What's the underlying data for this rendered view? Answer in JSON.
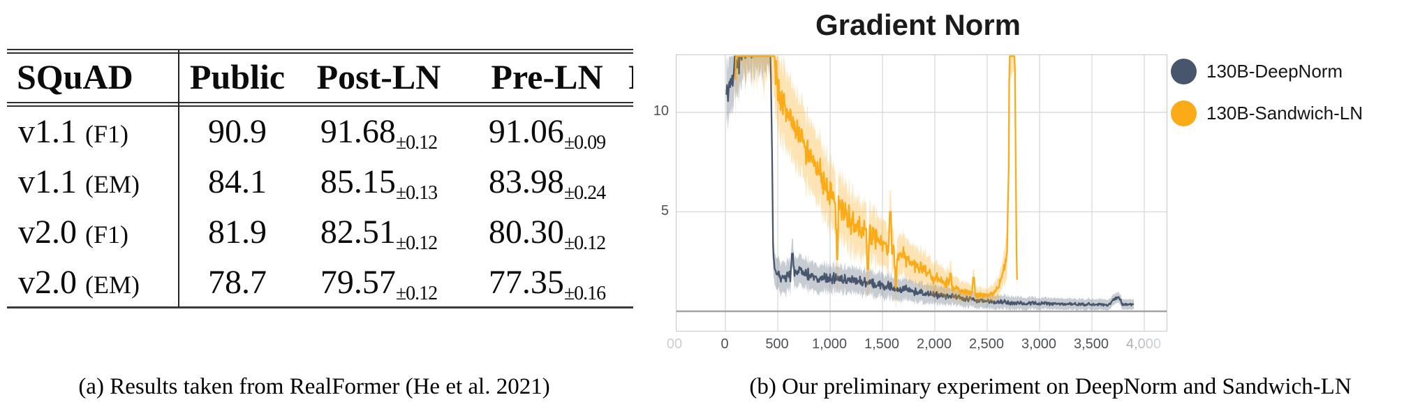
{
  "panel_a": {
    "table": {
      "header": [
        "SQuAD",
        "Public",
        "Post-LN",
        "Pre-LN"
      ],
      "clipped_next_column_glyph": "R",
      "rows": [
        {
          "version": "v1.1",
          "metric": "(F1)",
          "public": "90.9",
          "post_ln": "91.68",
          "post_ln_std": "±0.12",
          "pre_ln": "91.06",
          "pre_ln_std": "±0.09"
        },
        {
          "version": "v1.1",
          "metric": "(EM)",
          "public": "84.1",
          "post_ln": "85.15",
          "post_ln_std": "±0.13",
          "pre_ln": "83.98",
          "pre_ln_std": "±0.24"
        },
        {
          "version": "v2.0",
          "metric": "(F1)",
          "public": "81.9",
          "post_ln": "82.51",
          "post_ln_std": "±0.12",
          "pre_ln": "80.30",
          "pre_ln_std": "±0.12"
        },
        {
          "version": "v2.0",
          "metric": "(EM)",
          "public": "78.7",
          "post_ln": "79.57",
          "post_ln_std": "±0.12",
          "pre_ln": "77.35",
          "pre_ln_std": "±0.16"
        }
      ]
    },
    "caption": "(a) Results taken from RealFormer (He et al. 2021)"
  },
  "panel_b": {
    "title": "Gradient Norm",
    "caption": "(b) Our preliminary experiment on DeepNorm and Sandwich-LN"
  },
  "chart_data": {
    "type": "line",
    "title": "Gradient Norm",
    "xlabel": "",
    "ylabel": "",
    "grid": true,
    "legend_position": "right",
    "xlim": [
      -470,
      4210
    ],
    "ylim": [
      -1,
      12.9
    ],
    "x_ticks": [
      {
        "step": -480,
        "label": "00",
        "faded": true
      },
      {
        "step": 0,
        "label": "0"
      },
      {
        "step": 500,
        "label": "500"
      },
      {
        "step": 1000,
        "label": "1,000"
      },
      {
        "step": 1500,
        "label": "1,500"
      },
      {
        "step": 2000,
        "label": "2,000"
      },
      {
        "step": 2500,
        "label": "2,500"
      },
      {
        "step": 3000,
        "label": "3,000"
      },
      {
        "step": 3500,
        "label": "3,500"
      },
      {
        "step": 4000,
        "label": "4,000",
        "fadetail": true
      }
    ],
    "y_ticks": [
      {
        "value": 5,
        "label": "5"
      },
      {
        "value": 10,
        "label": "10"
      }
    ],
    "colors": {
      "grid": "#dcdcdc",
      "zero_line": "#a3a3a3",
      "plot_border": "#c7c7c7"
    },
    "series": [
      {
        "name": "130B-DeepNorm",
        "color": "#47566c",
        "band_color": "rgba(71,86,108,0.30)",
        "seed": 3,
        "trend": [
          [
            10,
            10.8
          ],
          [
            40,
            11.6
          ],
          [
            80,
            12.2
          ],
          [
            130,
            12.6
          ],
          [
            200,
            13.4
          ],
          [
            300,
            13.6
          ],
          [
            430,
            13.6
          ],
          [
            445,
            8
          ],
          [
            455,
            3.2
          ],
          [
            470,
            2.1
          ],
          [
            520,
            1.75
          ],
          [
            600,
            1.8
          ],
          [
            700,
            2.0
          ],
          [
            800,
            1.85
          ],
          [
            900,
            1.6
          ],
          [
            1000,
            1.7
          ],
          [
            1100,
            1.6
          ],
          [
            1300,
            1.5
          ],
          [
            1500,
            1.3
          ],
          [
            1700,
            1.1
          ],
          [
            1900,
            0.9
          ],
          [
            2100,
            0.78
          ],
          [
            2300,
            0.62
          ],
          [
            2500,
            0.5
          ],
          [
            2700,
            0.44
          ],
          [
            2900,
            0.4
          ],
          [
            3100,
            0.38
          ],
          [
            3300,
            0.36
          ],
          [
            3500,
            0.34
          ],
          [
            3650,
            0.33
          ],
          [
            3755,
            0.75
          ],
          [
            3790,
            0.35
          ],
          [
            3900,
            0.32
          ]
        ],
        "noise_amp": [
          [
            10,
            0.8
          ],
          [
            430,
            0.9
          ],
          [
            470,
            0.4
          ],
          [
            1000,
            0.32
          ],
          [
            1500,
            0.28
          ],
          [
            2000,
            0.2
          ],
          [
            2500,
            0.14
          ],
          [
            3000,
            0.1
          ],
          [
            3900,
            0.08
          ]
        ],
        "spikes": [
          [
            640,
            2.9
          ]
        ]
      },
      {
        "name": "130B-Sandwich-LN",
        "color": "#fbab17",
        "band_color": "rgba(251,171,23,0.32)",
        "seed": 11,
        "trend": [
          [
            95,
            12
          ],
          [
            120,
            14.5
          ],
          [
            430,
            14.5
          ],
          [
            500,
            10.8
          ],
          [
            600,
            9.8
          ],
          [
            700,
            8.9
          ],
          [
            800,
            7.9
          ],
          [
            900,
            6.9
          ],
          [
            1000,
            5.9
          ],
          [
            1100,
            5.2
          ],
          [
            1200,
            4.6
          ],
          [
            1300,
            4.1
          ],
          [
            1400,
            3.8
          ],
          [
            1500,
            3.5
          ],
          [
            1600,
            3.1
          ],
          [
            1700,
            2.75
          ],
          [
            1800,
            2.4
          ],
          [
            1900,
            2.0
          ],
          [
            2000,
            1.65
          ],
          [
            2100,
            1.45
          ],
          [
            2200,
            1.15
          ],
          [
            2300,
            0.95
          ],
          [
            2400,
            0.82
          ],
          [
            2500,
            0.8
          ],
          [
            2570,
            0.95
          ],
          [
            2620,
            1.4
          ],
          [
            2660,
            2.1
          ],
          [
            2690,
            3.4
          ],
          [
            2705,
            7
          ],
          [
            2712,
            13.6
          ],
          [
            2762,
            13.6
          ],
          [
            2770,
            9
          ],
          [
            2778,
            4
          ],
          [
            2786,
            1.3
          ]
        ],
        "noise_amp": [
          [
            95,
            1.4
          ],
          [
            430,
            1.5
          ],
          [
            500,
            1.1
          ],
          [
            800,
            0.95
          ],
          [
            1200,
            0.8
          ],
          [
            1600,
            0.55
          ],
          [
            2000,
            0.4
          ],
          [
            2300,
            0.2
          ],
          [
            2500,
            0.12
          ],
          [
            2650,
            0.3
          ],
          [
            2700,
            0.8
          ],
          [
            2760,
            1.0
          ],
          [
            2786,
            0.3
          ]
        ],
        "spikes": [
          [
            1067,
            2.6
          ],
          [
            1360,
            2.1
          ],
          [
            1575,
            5.0
          ],
          [
            1627,
            1.2
          ],
          [
            2150,
            1.9
          ],
          [
            2370,
            1.7
          ]
        ]
      }
    ]
  }
}
